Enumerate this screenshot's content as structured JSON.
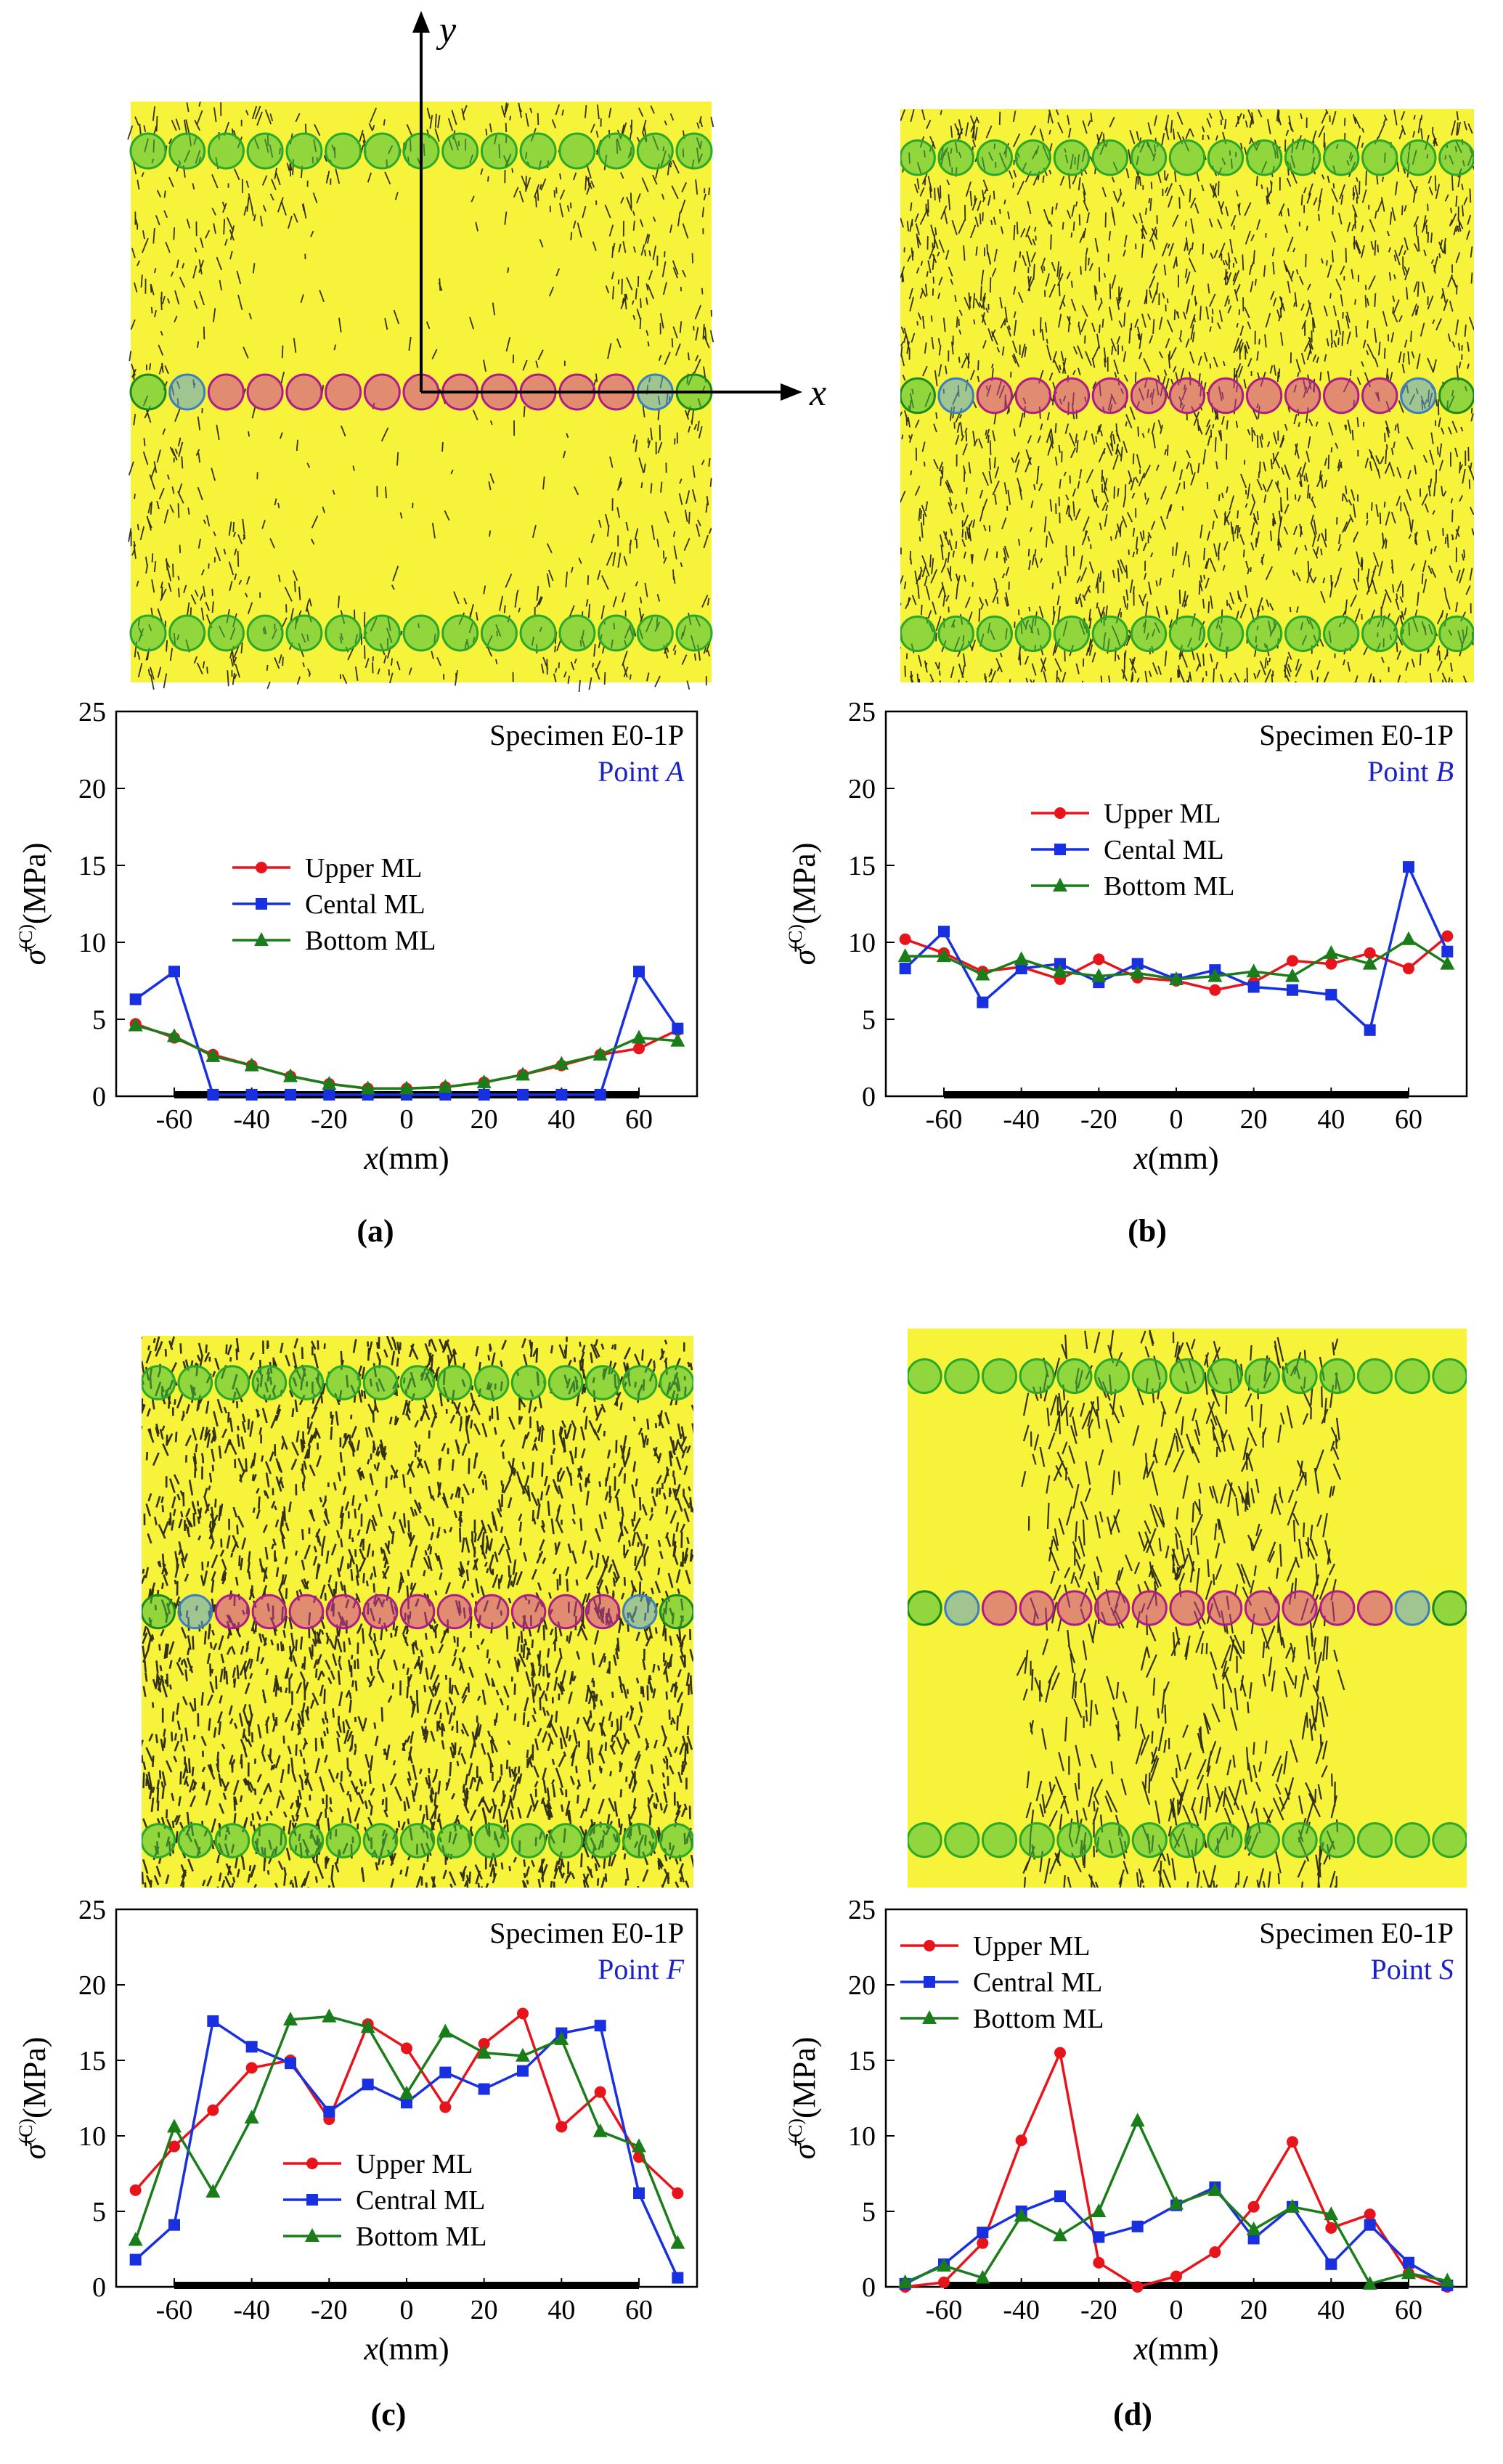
{
  "axis_arrows": {
    "y_label": "y",
    "x_label": "x"
  },
  "colors": {
    "upper": "#e8141b",
    "central": "#1830e0",
    "bottom": "#1a7d1a",
    "specimen_bg": "#f7f23a",
    "green_circle": "#3fbf3f",
    "pink_circle": "#d0379f",
    "blue_circle": "#5aa0d8",
    "point_text": "#1a22c8"
  },
  "panels": [
    {
      "label": "(a)",
      "specimen_image": {
        "pattern": "radial-clear-center"
      },
      "chart_data": {
        "type": "line",
        "specimen": "Specimen E0-1P",
        "point_prefix": "Point ",
        "point_name": "A",
        "xlabel_var": "x",
        "xlabel_unit": "(mm)",
        "ylabel_sym": "σ̄",
        "ylabel_sup": "(C)",
        "ylabel_unit": "(MPa)",
        "xlim": [
          -75,
          75
        ],
        "ylim": [
          0,
          25
        ],
        "xticks": [
          -60,
          -40,
          -20,
          0,
          20,
          40,
          60
        ],
        "yticks": [
          0,
          5,
          10,
          15,
          20,
          25
        ],
        "bar_range": [
          -60,
          60
        ],
        "legend_pos": "center-left",
        "x": [
          -70,
          -60,
          -50,
          -40,
          -30,
          -20,
          -10,
          0,
          10,
          20,
          30,
          40,
          50,
          60,
          70
        ],
        "series": [
          {
            "name": "Upper ML",
            "key": "upper",
            "marker": "circle",
            "values": [
              4.7,
              3.8,
              2.7,
              2.0,
              1.3,
              0.8,
              0.5,
              0.5,
              0.6,
              0.9,
              1.4,
              2.0,
              2.7,
              3.1,
              4.3
            ]
          },
          {
            "name": "Cental ML",
            "key": "central",
            "marker": "square",
            "values": [
              6.3,
              8.1,
              0.1,
              0.1,
              0.1,
              0.1,
              0.1,
              0.1,
              0.1,
              0.1,
              0.1,
              0.1,
              0.1,
              8.1,
              4.4
            ]
          },
          {
            "name": "Bottom ML",
            "key": "bottom",
            "marker": "triangle",
            "values": [
              4.6,
              3.9,
              2.6,
              2.0,
              1.3,
              0.8,
              0.5,
              0.5,
              0.6,
              0.9,
              1.4,
              2.1,
              2.7,
              3.8,
              3.6
            ]
          }
        ]
      }
    },
    {
      "label": "(b)",
      "specimen_image": {
        "pattern": "dense-uniform"
      },
      "chart_data": {
        "type": "line",
        "specimen": "Specimen E0-1P",
        "point_prefix": "Point ",
        "point_name": "B",
        "xlabel_var": "x",
        "xlabel_unit": "(mm)",
        "ylabel_sym": "σ̄",
        "ylabel_sup": "(C)",
        "ylabel_unit": "(MPa)",
        "xlim": [
          -75,
          75
        ],
        "ylim": [
          0,
          25
        ],
        "xticks": [
          -60,
          -40,
          -20,
          0,
          20,
          40,
          60
        ],
        "yticks": [
          0,
          5,
          10,
          15,
          20,
          25
        ],
        "bar_range": [
          -60,
          60
        ],
        "legend_pos": "upper-left",
        "x": [
          -70,
          -60,
          -50,
          -40,
          -30,
          -20,
          -10,
          0,
          10,
          20,
          30,
          40,
          50,
          60,
          70
        ],
        "series": [
          {
            "name": "Upper ML",
            "key": "upper",
            "marker": "circle",
            "values": [
              10.2,
              9.3,
              8.1,
              8.4,
              7.6,
              8.9,
              7.7,
              7.5,
              6.9,
              7.4,
              8.8,
              8.6,
              9.3,
              8.3,
              10.4
            ]
          },
          {
            "name": "Cental ML",
            "key": "central",
            "marker": "square",
            "values": [
              8.3,
              10.7,
              6.1,
              8.3,
              8.6,
              7.4,
              8.6,
              7.6,
              8.2,
              7.1,
              6.9,
              6.6,
              4.3,
              14.9,
              9.4
            ]
          },
          {
            "name": "Bottom ML",
            "key": "bottom",
            "marker": "triangle",
            "values": [
              9.1,
              9.1,
              7.9,
              8.9,
              8.1,
              7.8,
              8.0,
              7.6,
              7.8,
              8.1,
              7.8,
              9.3,
              8.6,
              10.2,
              8.6
            ]
          }
        ]
      }
    },
    {
      "label": "(c)",
      "specimen_image": {
        "pattern": "dense-cracks"
      },
      "chart_data": {
        "type": "line",
        "specimen": "Specimen E0-1P",
        "point_prefix": "Point ",
        "point_name": "F",
        "xlabel_var": "x",
        "xlabel_unit": "(mm)",
        "ylabel_sym": "σ̄",
        "ylabel_sup": "(C)",
        "ylabel_unit": "(MPa)",
        "xlim": [
          -75,
          75
        ],
        "ylim": [
          0,
          25
        ],
        "xticks": [
          -60,
          -40,
          -20,
          0,
          20,
          40,
          60
        ],
        "yticks": [
          0,
          5,
          10,
          15,
          20,
          25
        ],
        "bar_range": [
          -60,
          60
        ],
        "legend_pos": "lower-center",
        "x": [
          -70,
          -60,
          -50,
          -40,
          -30,
          -20,
          -10,
          0,
          10,
          20,
          30,
          40,
          50,
          60,
          70
        ],
        "series": [
          {
            "name": "Upper ML",
            "key": "upper",
            "marker": "circle",
            "values": [
              6.4,
              9.3,
              11.7,
              14.5,
              15.0,
              11.1,
              17.4,
              15.8,
              11.9,
              16.1,
              18.1,
              10.6,
              12.9,
              8.6,
              6.2
            ]
          },
          {
            "name": "Central ML",
            "key": "central",
            "marker": "square",
            "values": [
              1.8,
              4.1,
              17.6,
              15.9,
              14.8,
              11.6,
              13.4,
              12.2,
              14.2,
              13.1,
              14.3,
              16.8,
              17.3,
              6.2,
              0.6
            ]
          },
          {
            "name": "Bottom ML",
            "key": "bottom",
            "marker": "triangle",
            "values": [
              3.1,
              10.6,
              6.3,
              11.2,
              17.7,
              17.9,
              17.2,
              12.8,
              16.9,
              15.5,
              15.3,
              16.4,
              10.3,
              9.3,
              2.9
            ]
          }
        ]
      }
    },
    {
      "label": "(d)",
      "specimen_image": {
        "pattern": "sparse-cracks"
      },
      "chart_data": {
        "type": "line",
        "specimen": "Specimen E0-1P",
        "point_prefix": "Point ",
        "point_name": "S",
        "xlabel_var": "x",
        "xlabel_unit": "(mm)",
        "ylabel_sym": "σ̄",
        "ylabel_sup": "(C)",
        "ylabel_unit": "(MPa)",
        "xlim": [
          -75,
          75
        ],
        "ylim": [
          0,
          25
        ],
        "xticks": [
          -60,
          -40,
          -20,
          0,
          20,
          40,
          60
        ],
        "yticks": [
          0,
          5,
          10,
          15,
          20,
          25
        ],
        "bar_range": [
          -60,
          60
        ],
        "legend_pos": "upper-left",
        "x": [
          -70,
          -60,
          -50,
          -40,
          -30,
          -20,
          -10,
          0,
          10,
          20,
          30,
          40,
          50,
          60,
          70
        ],
        "series": [
          {
            "name": "Upper ML",
            "key": "upper",
            "marker": "circle",
            "values": [
              0.0,
              0.3,
              2.9,
              9.7,
              15.5,
              1.6,
              0.0,
              0.7,
              2.3,
              5.3,
              9.6,
              3.9,
              4.8,
              0.9,
              0.0
            ]
          },
          {
            "name": "Central ML",
            "key": "central",
            "marker": "square",
            "values": [
              0.2,
              1.5,
              3.6,
              5.0,
              6.0,
              3.3,
              4.0,
              5.4,
              6.6,
              3.2,
              5.3,
              1.5,
              4.1,
              1.6,
              0.1
            ]
          },
          {
            "name": "Bottom ML",
            "key": "bottom",
            "marker": "triangle",
            "values": [
              0.3,
              1.4,
              0.6,
              4.7,
              3.4,
              5.0,
              11.0,
              5.5,
              6.4,
              3.8,
              5.3,
              4.8,
              0.2,
              0.9,
              0.4
            ]
          }
        ]
      }
    }
  ]
}
